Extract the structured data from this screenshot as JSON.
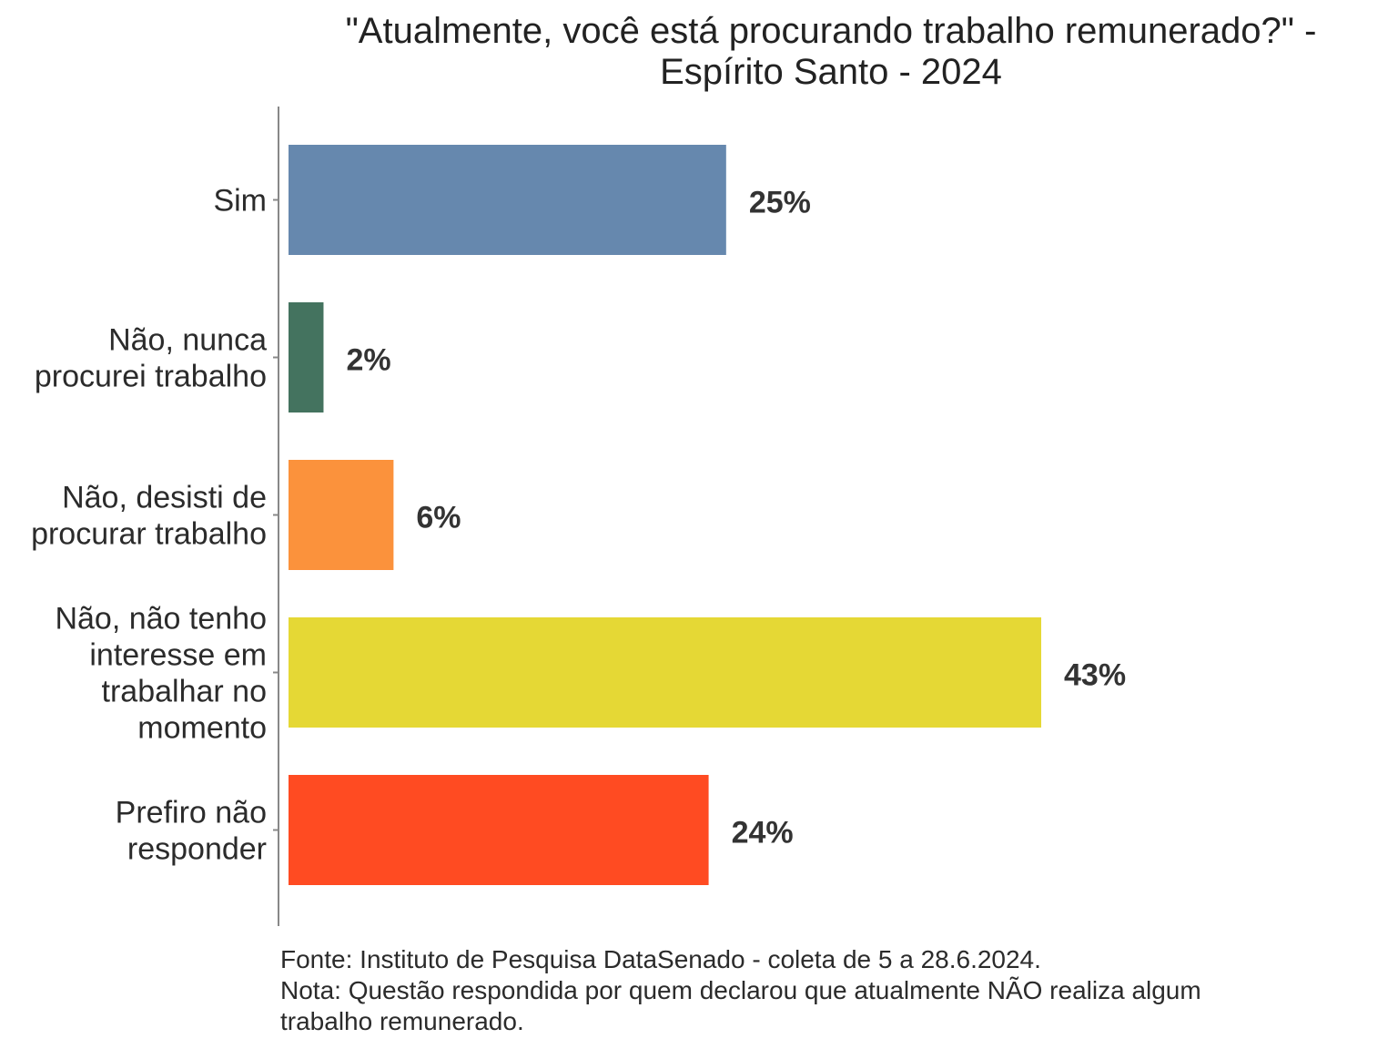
{
  "chart_data": {
    "type": "bar",
    "orientation": "horizontal",
    "title": [
      "\"Atualmente, você está procurando trabalho remunerado?\" -",
      "Espírito Santo - 2024"
    ],
    "categories": [
      [
        "Sim"
      ],
      [
        "Não, nunca",
        "procurei trabalho"
      ],
      [
        "Não, desisti de",
        "procurar trabalho"
      ],
      [
        "Não, não tenho",
        "interesse em",
        "trabalhar no",
        "momento"
      ],
      [
        "Prefiro não",
        "responder"
      ]
    ],
    "values": [
      25,
      2,
      6,
      43,
      24
    ],
    "value_labels": [
      "25%",
      "2%",
      "6%",
      "43%",
      "24%"
    ],
    "colors": [
      "#6688AE",
      "#44735F",
      "#FB923C",
      "#E5D835",
      "#FF4B22"
    ],
    "xlim": [
      0,
      45
    ],
    "grid": false,
    "xlabel": "",
    "ylabel": ""
  },
  "footnote": [
    "Fonte: Instituto de Pesquisa DataSenado - coleta de 5 a 28.6.2024.",
    "Nota: Questão respondida por quem declarou que atualmente NÃO realiza algum",
    "trabalho remunerado."
  ]
}
